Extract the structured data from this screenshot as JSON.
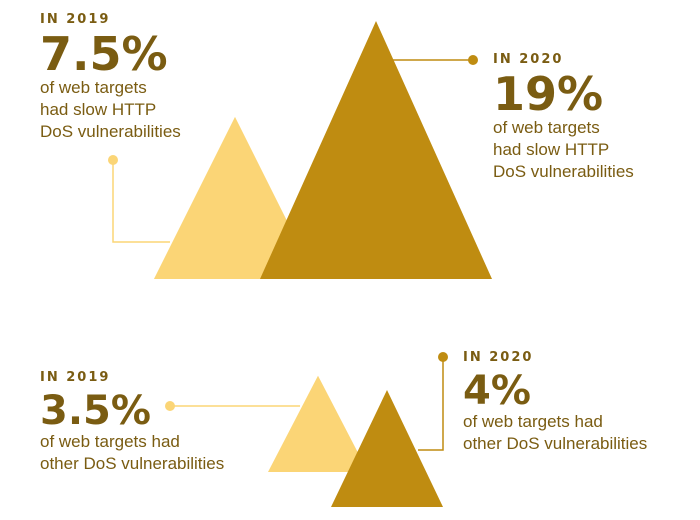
{
  "colors": {
    "light": "#fbd576",
    "dark": "#bf8c11",
    "text": "#7a5c12"
  },
  "chart_data": [
    {
      "type": "area",
      "categories": [
        "IN 2019",
        "IN 2020"
      ],
      "values": [
        7.5,
        19
      ],
      "unit": "%",
      "labels": [
        {
          "year": "IN 2019",
          "value": "7.5%",
          "lines": [
            "of web targets",
            "had slow HTTP",
            "DoS vulnerabilities"
          ]
        },
        {
          "year": "IN 2020",
          "value": "19%",
          "lines": [
            "of web targets",
            "had slow HTTP",
            "DoS vulnerabilities"
          ]
        }
      ]
    },
    {
      "type": "area",
      "categories": [
        "IN 2019",
        "IN 2020"
      ],
      "values": [
        3.5,
        4
      ],
      "unit": "%",
      "labels": [
        {
          "year": "IN 2019",
          "value": "3.5%",
          "lines": [
            "of web targets had",
            "other DoS vulnerabilities"
          ]
        },
        {
          "year": "IN 2020",
          "value": "4%",
          "lines": [
            "of web targets had",
            "other DoS vulnerabilities"
          ]
        }
      ]
    }
  ]
}
